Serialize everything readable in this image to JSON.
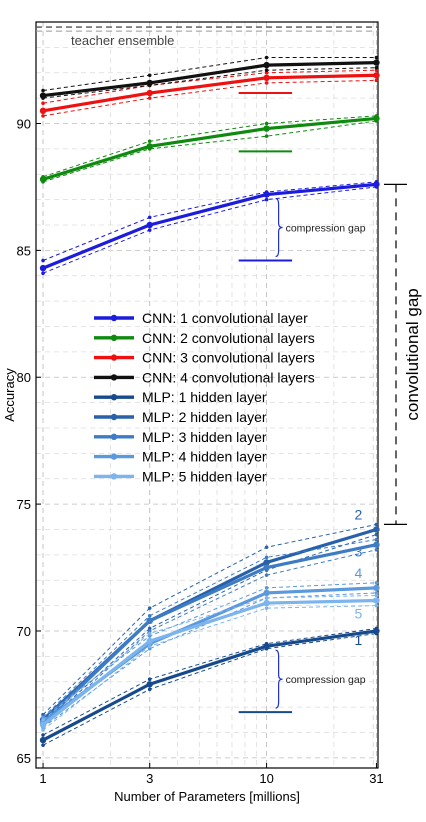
{
  "chart_data": {
    "type": "line",
    "xscale": "log",
    "xlabel": "Number of Parameters [millions]",
    "ylabel": "Accuracy",
    "xlim": [
      0.93,
      31.5
    ],
    "ylim": [
      64.6,
      94.0
    ],
    "xticks": [
      1,
      3,
      10,
      31
    ],
    "yticks": [
      65,
      70,
      75,
      80,
      85,
      90
    ],
    "grid": true,
    "legend_position": "center",
    "x": [
      1,
      3,
      10,
      31
    ],
    "teacher": {
      "label": "teacher ensemble",
      "value": 93.8
    },
    "series": [
      {
        "name": "CNN: 1 convolutional layer",
        "color": "#1c1cdc",
        "values": [
          84.3,
          86.0,
          87.2,
          87.6
        ],
        "upper": [
          84.6,
          86.3,
          87.3,
          87.7
        ],
        "lower": [
          84.1,
          85.8,
          87.0,
          87.5
        ],
        "distilled_ref": 84.6
      },
      {
        "name": "CNN: 2 convolutional layers",
        "color": "#0f8a0f",
        "values": [
          87.8,
          89.1,
          89.8,
          90.2
        ],
        "upper": [
          87.9,
          89.3,
          90.0,
          90.3
        ],
        "lower": [
          87.7,
          89.0,
          89.5,
          90.1
        ],
        "distilled_ref": 88.9
      },
      {
        "name": "CNN: 3 convolutional layers",
        "color": "#ee1111",
        "values": [
          90.5,
          91.2,
          91.8,
          91.9
        ],
        "upper": [
          90.8,
          91.5,
          92.0,
          92.1
        ],
        "lower": [
          90.3,
          91.0,
          91.6,
          91.7
        ],
        "distilled_ref": 91.2
      },
      {
        "name": "CNN: 4 convolutional layers",
        "color": "#111111",
        "values": [
          91.1,
          91.6,
          92.3,
          92.4
        ],
        "upper": [
          91.3,
          91.9,
          92.6,
          92.6
        ],
        "lower": [
          91.0,
          91.5,
          92.1,
          92.2
        ],
        "distilled_ref": null
      },
      {
        "name": "MLP: 1 hidden layer",
        "color": "#174a8c",
        "values": [
          65.7,
          67.9,
          69.4,
          70.0
        ],
        "upper": [
          65.9,
          68.1,
          69.5,
          70.1
        ],
        "lower": [
          65.5,
          67.7,
          69.3,
          69.9
        ],
        "distilled_ref": 66.8,
        "end_label": "1"
      },
      {
        "name": "MLP: 2 hidden layer",
        "color": "#2861aa",
        "values": [
          66.5,
          70.4,
          72.7,
          74.0
        ],
        "upper": [
          66.7,
          70.9,
          73.3,
          74.2
        ],
        "lower": [
          66.3,
          70.1,
          72.4,
          73.8
        ],
        "distilled_ref": null,
        "end_label": "2"
      },
      {
        "name": "MLP: 3 hidden layer",
        "color": "#3d7cc4",
        "values": [
          66.4,
          70.4,
          72.5,
          73.4
        ],
        "upper": [
          66.6,
          70.6,
          72.9,
          73.6
        ],
        "lower": [
          66.2,
          70.0,
          72.2,
          73.2
        ],
        "distilled_ref": null,
        "end_label": "3"
      },
      {
        "name": "MLP: 4 hidden layer",
        "color": "#5b98dc",
        "values": [
          66.4,
          69.5,
          71.5,
          71.7
        ],
        "upper": [
          66.6,
          69.8,
          71.7,
          71.9
        ],
        "lower": [
          66.2,
          69.3,
          71.3,
          71.5
        ],
        "distilled_ref": null,
        "end_label": "4"
      },
      {
        "name": "MLP: 5 hidden layer",
        "color": "#7cb4ee",
        "values": [
          66.3,
          69.6,
          71.1,
          71.2
        ],
        "upper": [
          66.5,
          69.9,
          71.3,
          71.4
        ],
        "lower": [
          66.1,
          69.4,
          70.9,
          71.0
        ],
        "distilled_ref": null,
        "end_label": "5"
      }
    ],
    "annotations": [
      {
        "text": "compression gap",
        "x": 10,
        "y_top": 87.2,
        "y_bottom": 84.6
      },
      {
        "text": "compression gap",
        "x": 10,
        "y_top": 69.4,
        "y_bottom": 66.8
      }
    ],
    "side_bracket": {
      "label": "convolutional gap",
      "y_top": 87.6,
      "y_bottom": 74.2
    }
  }
}
